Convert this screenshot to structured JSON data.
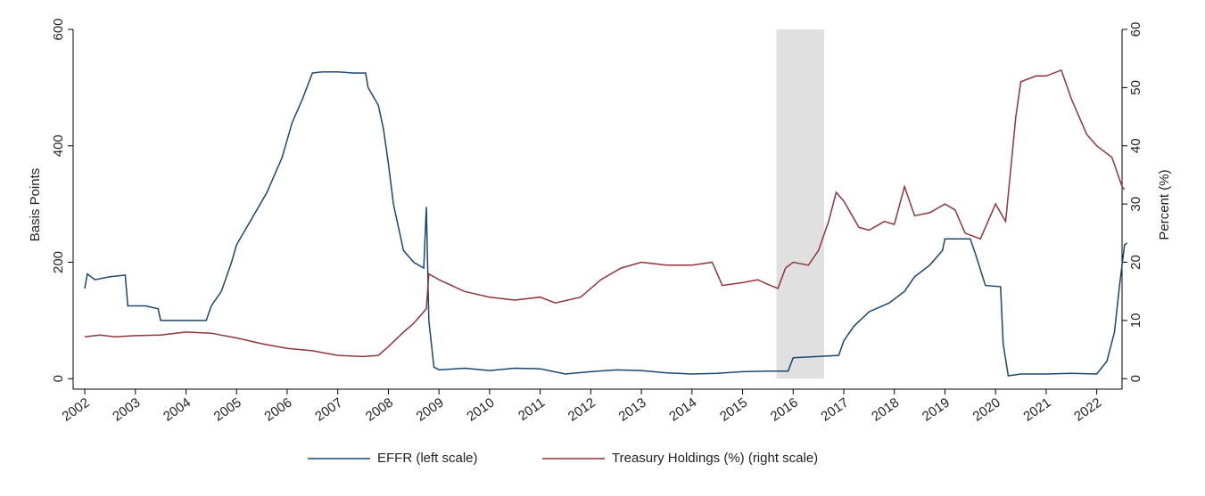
{
  "chart_data": {
    "type": "line",
    "ylabel": "Basis Points",
    "y2label": "Percent (%)",
    "xlim": [
      2001.77,
      2022.5
    ],
    "xticks": [
      2002,
      2003,
      2004,
      2005,
      2006,
      2007,
      2008,
      2009,
      2010,
      2011,
      2012,
      2013,
      2014,
      2015,
      2016,
      2017,
      2018,
      2019,
      2020,
      2021,
      2022
    ],
    "ylim": [
      -18,
      600
    ],
    "yticks": [
      0,
      200,
      400,
      600
    ],
    "y2lim": [
      -1.8,
      60
    ],
    "y2ticks": [
      0,
      10,
      20,
      30,
      40,
      50,
      60
    ],
    "grid": false,
    "legend": "bottom",
    "shade_x": [
      2015.67,
      2016.61
    ],
    "shade_color": "#e0e0e0",
    "series": [
      {
        "name": "EFFR (left scale)",
        "color": "#1a476f",
        "axis": "y",
        "x": [
          2002.0,
          2002.05,
          2002.2,
          2002.5,
          2002.8,
          2002.85,
          2003.2,
          2003.45,
          2003.5,
          2003.7,
          2004.0,
          2004.4,
          2004.5,
          2004.7,
          2004.9,
          2005.0,
          2005.3,
          2005.6,
          2005.9,
          2006.1,
          2006.3,
          2006.5,
          2006.7,
          2007.0,
          2007.3,
          2007.55,
          2007.6,
          2007.8,
          2007.9,
          2008.0,
          2008.1,
          2008.3,
          2008.5,
          2008.7,
          2008.75,
          2008.8,
          2008.9,
          2009.0,
          2009.5,
          2010.0,
          2010.5,
          2011.0,
          2011.5,
          2012.0,
          2012.5,
          2013.0,
          2013.5,
          2014.0,
          2014.5,
          2015.0,
          2015.5,
          2015.9,
          2016.0,
          2016.9,
          2017.0,
          2017.2,
          2017.5,
          2017.9,
          2018.2,
          2018.4,
          2018.7,
          2018.95,
          2019.0,
          2019.5,
          2019.6,
          2019.8,
          2020.1,
          2020.15,
          2020.25,
          2020.5,
          2021.0,
          2021.5,
          2022.0,
          2022.2,
          2022.35,
          2022.45,
          2022.55,
          2022.6
        ],
        "values": [
          155,
          180,
          170,
          175,
          178,
          125,
          125,
          120,
          100,
          100,
          100,
          100,
          125,
          150,
          200,
          230,
          275,
          320,
          380,
          440,
          480,
          525,
          527,
          527,
          525,
          525,
          500,
          470,
          430,
          370,
          300,
          220,
          200,
          190,
          295,
          100,
          20,
          15,
          18,
          14,
          18,
          17,
          8,
          12,
          15,
          14,
          10,
          8,
          9,
          12,
          13,
          13,
          36,
          40,
          65,
          90,
          115,
          130,
          150,
          175,
          195,
          220,
          240,
          240,
          215,
          160,
          158,
          60,
          5,
          8,
          8,
          9,
          8,
          30,
          80,
          160,
          230,
          233
        ]
      },
      {
        "name": "Treasury Holdings (%) (right scale)",
        "color": "#90353b",
        "axis": "y2",
        "x": [
          2002.0,
          2002.3,
          2002.6,
          2003.0,
          2003.5,
          2004.0,
          2004.5,
          2005.0,
          2005.5,
          2006.0,
          2006.5,
          2007.0,
          2007.5,
          2007.8,
          2008.0,
          2008.3,
          2008.5,
          2008.75,
          2008.8,
          2009.0,
          2009.5,
          2010.0,
          2010.5,
          2011.0,
          2011.3,
          2011.8,
          2012.2,
          2012.6,
          2013.0,
          2013.5,
          2014.0,
          2014.4,
          2014.6,
          2015.0,
          2015.3,
          2015.5,
          2015.7,
          2015.85,
          2016.0,
          2016.3,
          2016.5,
          2016.7,
          2016.85,
          2017.0,
          2017.3,
          2017.5,
          2017.8,
          2018.0,
          2018.2,
          2018.4,
          2018.7,
          2019.0,
          2019.2,
          2019.4,
          2019.7,
          2019.9,
          2020.0,
          2020.2,
          2020.4,
          2020.5,
          2020.8,
          2021.0,
          2021.3,
          2021.5,
          2021.8,
          2022.0,
          2022.3,
          2022.5,
          2022.55
        ],
        "values": [
          7.2,
          7.5,
          7.2,
          7.4,
          7.5,
          8.0,
          7.8,
          7.0,
          6.0,
          5.2,
          4.8,
          4.0,
          3.8,
          4.0,
          5.5,
          8.0,
          9.5,
          12,
          18,
          17,
          15,
          14,
          13.5,
          14,
          13.0,
          14,
          17,
          19,
          20,
          19.5,
          19.5,
          20,
          16,
          16.5,
          17,
          16.2,
          15.5,
          19,
          20,
          19.5,
          22,
          27,
          32,
          30.5,
          26,
          25.5,
          27,
          26.5,
          33,
          28,
          28.5,
          30,
          29,
          25,
          24,
          28,
          30,
          27,
          45,
          51,
          52,
          52,
          53,
          48,
          42,
          40,
          38,
          33,
          32.5
        ]
      }
    ]
  }
}
